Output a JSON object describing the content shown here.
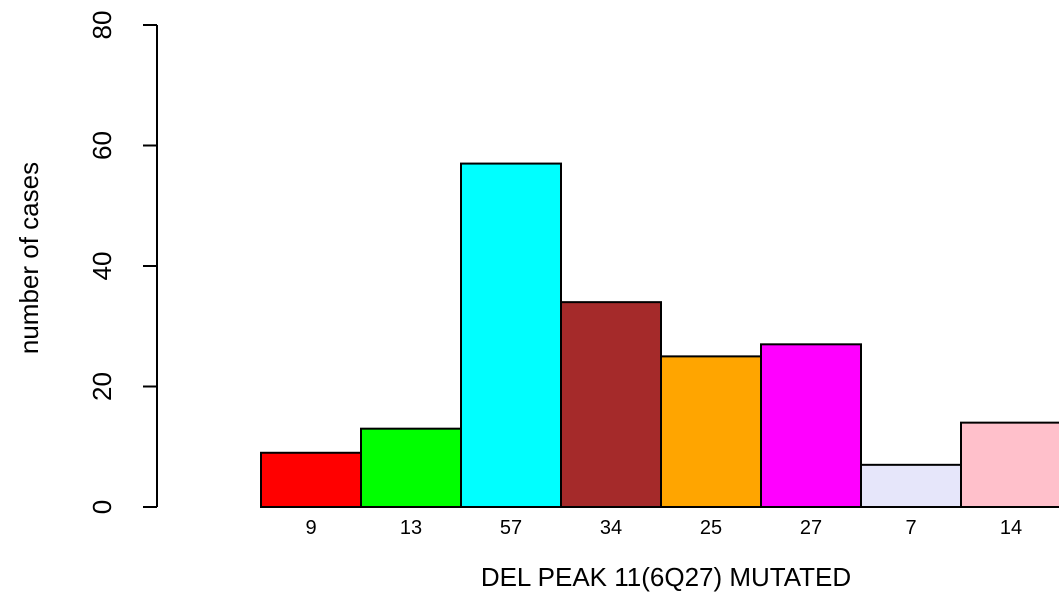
{
  "chart_data": {
    "type": "bar",
    "categories": [
      "9",
      "13",
      "57",
      "34",
      "25",
      "27",
      "7",
      "14"
    ],
    "values": [
      9,
      13,
      57,
      34,
      25,
      27,
      7,
      14
    ],
    "colors": [
      "#ff0000",
      "#00ff00",
      "#00ffff",
      "#a52a2a",
      "#ffa500",
      "#ff00ff",
      "#e6e6fa",
      "#ffc0cb"
    ],
    "title": "",
    "xlabel": "DEL PEAK 11(6Q27) MUTATED",
    "ylabel": "number of cases",
    "ylim": [
      0,
      80
    ],
    "yticks": [
      0,
      20,
      40,
      60,
      80
    ],
    "grid": false,
    "legend": "none"
  }
}
